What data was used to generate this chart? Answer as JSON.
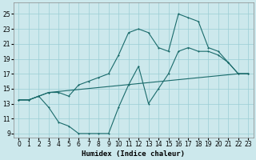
{
  "xlabel": "Humidex (Indice chaleur)",
  "bg_color": "#cce8ec",
  "grid_color": "#9bcdd4",
  "line_color": "#1a6b6b",
  "ylim": [
    8.5,
    26.5
  ],
  "xlim": [
    -0.5,
    23.5
  ],
  "yticks": [
    9,
    11,
    13,
    15,
    17,
    19,
    21,
    23,
    25
  ],
  "xticks": [
    0,
    1,
    2,
    3,
    4,
    5,
    6,
    7,
    8,
    9,
    10,
    11,
    12,
    13,
    14,
    15,
    16,
    17,
    18,
    19,
    20,
    21,
    22,
    23
  ],
  "line_straight_x": [
    0,
    1,
    2,
    3,
    22,
    23
  ],
  "line_straight_y": [
    13.5,
    13.5,
    14.0,
    14.5,
    17.0,
    17.0
  ],
  "line_peak_x": [
    0,
    1,
    2,
    3,
    4,
    5,
    6,
    7,
    8,
    9,
    10,
    11,
    12,
    13,
    14,
    15,
    16,
    17,
    18,
    19,
    20,
    21,
    22,
    23
  ],
  "line_peak_y": [
    13.5,
    13.5,
    14.0,
    14.5,
    14.5,
    14.0,
    15.5,
    16.0,
    16.5,
    17.0,
    19.5,
    22.5,
    23.0,
    22.5,
    20.5,
    20.0,
    25.0,
    24.5,
    24.0,
    20.5,
    20.0,
    18.5,
    17.0,
    17.0
  ],
  "line_dip_x": [
    0,
    1,
    2,
    3,
    4,
    5,
    6,
    7,
    8,
    9,
    10,
    11,
    12,
    13,
    14,
    15,
    16,
    17,
    18,
    19,
    20,
    21,
    22,
    23
  ],
  "line_dip_y": [
    13.5,
    13.5,
    14.0,
    12.5,
    10.5,
    10.0,
    9.0,
    9.0,
    9.0,
    9.0,
    12.5,
    15.5,
    18.0,
    13.0,
    15.0,
    17.0,
    20.0,
    20.5,
    20.0,
    20.0,
    19.5,
    18.5,
    17.0,
    17.0
  ]
}
